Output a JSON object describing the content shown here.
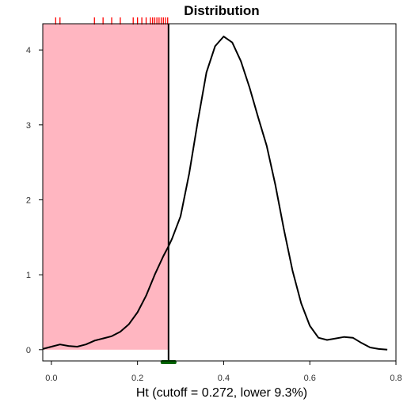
{
  "chart_data": {
    "type": "area",
    "title": "Distribution",
    "xlabel": "Ht (cutoff = 0.272, lower 9.3%)",
    "ylabel": "",
    "xlim": [
      -0.02,
      0.8
    ],
    "ylim": [
      -0.15,
      4.35
    ],
    "x_ticks": [
      0.0,
      0.2,
      0.4,
      0.6,
      0.8
    ],
    "x_tick_labels": [
      "0.0",
      "0.2",
      "0.4",
      "0.6",
      "0.8"
    ],
    "y_ticks": [
      0,
      1,
      2,
      3,
      4
    ],
    "y_tick_labels": [
      "0",
      "1",
      "2",
      "3",
      "4"
    ],
    "cutoff": 0.272,
    "lower_percent": 9.3,
    "shaded_region": {
      "x_from": -0.02,
      "x_to": 0.272,
      "color": "#ffb6c1"
    },
    "cutoff_line_color": "#000000",
    "cutoff_marker_color": "#006400",
    "rug_color": "#ff0000",
    "grid": false,
    "series": [
      {
        "x": [
          -0.02,
          0.0,
          0.02,
          0.04,
          0.06,
          0.08,
          0.1,
          0.12,
          0.14,
          0.16,
          0.18,
          0.2,
          0.22,
          0.24,
          0.26,
          0.272,
          0.28,
          0.3,
          0.32,
          0.34,
          0.36,
          0.38,
          0.4,
          0.42,
          0.44,
          0.46,
          0.48,
          0.5,
          0.52,
          0.54,
          0.56,
          0.58,
          0.6,
          0.62,
          0.64,
          0.66,
          0.68,
          0.7,
          0.72,
          0.74,
          0.76,
          0.78
        ],
        "y": [
          0.01,
          0.04,
          0.07,
          0.05,
          0.04,
          0.07,
          0.12,
          0.15,
          0.18,
          0.24,
          0.34,
          0.5,
          0.72,
          1.0,
          1.25,
          1.38,
          1.48,
          1.78,
          2.35,
          3.05,
          3.7,
          4.05,
          4.18,
          4.1,
          3.85,
          3.5,
          3.1,
          2.72,
          2.2,
          1.6,
          1.05,
          0.62,
          0.32,
          0.16,
          0.13,
          0.15,
          0.17,
          0.16,
          0.09,
          0.03,
          0.01,
          0.0
        ]
      }
    ],
    "rug_x": [
      0.01,
      0.02,
      0.1,
      0.12,
      0.14,
      0.16,
      0.19,
      0.2,
      0.21,
      0.22,
      0.23,
      0.235,
      0.24,
      0.245,
      0.25,
      0.255,
      0.26,
      0.265,
      0.27
    ]
  }
}
